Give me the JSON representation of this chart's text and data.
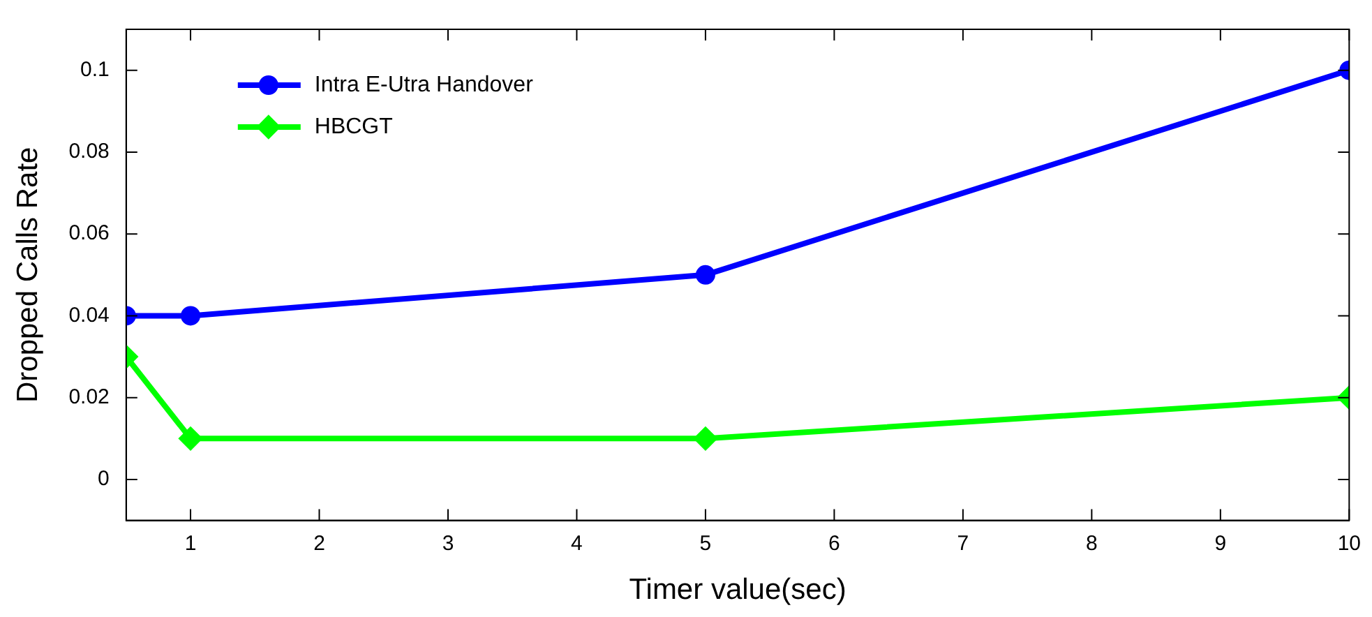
{
  "chart_data": {
    "type": "line",
    "xlabel": "Timer value(sec)",
    "ylabel": "Dropped Calls Rate",
    "x": [
      0.5,
      1,
      5,
      10
    ],
    "series": [
      {
        "name": "Intra E-Utra Handover",
        "color": "#0000ff",
        "marker": "circle",
        "values": [
          0.04,
          0.04,
          0.05,
          0.1
        ]
      },
      {
        "name": "HBCGT",
        "color": "#00ff00",
        "marker": "diamond",
        "values": [
          0.03,
          0.01,
          0.01,
          0.02
        ]
      }
    ],
    "xlim": [
      0.5,
      10
    ],
    "xticks": [
      1,
      2,
      3,
      4,
      5,
      6,
      7,
      8,
      9,
      10
    ],
    "ylim": [
      -0.01,
      0.11
    ],
    "yticks": [
      0,
      0.02,
      0.04,
      0.06,
      0.08,
      0.1
    ],
    "grid": false,
    "legend": "top left",
    "line_style": "solid"
  }
}
